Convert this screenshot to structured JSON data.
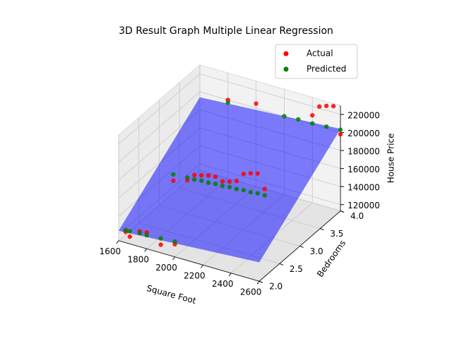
{
  "chart_data": {
    "type": "scatter3d",
    "title": "3D Result Graph Multiple Linear Regression",
    "xlabel": "Square Foot",
    "ylabel": "Bedrooms",
    "zlabel": "House Price",
    "xlim": [
      1600,
      2600
    ],
    "xticks": [
      1600,
      1800,
      2000,
      2200,
      2400,
      2600
    ],
    "ylim": [
      2,
      4
    ],
    "yticks": [
      {
        "value": 2,
        "label": "2.0"
      },
      {
        "value": 2.5,
        "label": "2.5"
      },
      {
        "value": 3,
        "label": "3.0"
      },
      {
        "value": 3.5,
        "label": "3.5"
      },
      {
        "value": 4,
        "label": "4.0"
      }
    ],
    "zlim": [
      113000,
      230000
    ],
    "zticks": [
      120000,
      140000,
      160000,
      180000,
      200000,
      220000
    ],
    "grid": true,
    "legend": "upper right",
    "series": [
      {
        "name": "Actual",
        "color": "red",
        "x": [
          1650,
          1680,
          1750,
          1800,
          1900,
          2000,
          1700,
          1800,
          1850,
          1900,
          1950,
          2000,
          2050,
          2100,
          2150,
          2200,
          2250,
          2300,
          2350,
          1800,
          2000,
          2400,
          2450,
          2500,
          2550,
          2600
        ],
        "y": [
          2,
          2,
          2,
          2,
          2,
          2,
          3,
          3,
          3,
          3,
          3,
          3,
          3,
          3,
          3,
          3,
          3,
          3,
          3,
          4,
          4,
          4,
          4,
          4,
          4,
          4
        ],
        "z": [
          125000,
          121000,
          130000,
          131000,
          122000,
          127000,
          145000,
          150000,
          158000,
          160000,
          162000,
          163000,
          160000,
          162000,
          165000,
          175000,
          178000,
          180000,
          165000,
          200000,
          205000,
          210000,
          222000,
          225000,
          227000,
          198000
        ]
      },
      {
        "name": "Predicted",
        "color": "green",
        "x": [
          1650,
          1680,
          1750,
          1800,
          1900,
          2000,
          1700,
          1800,
          1850,
          1900,
          1950,
          2000,
          2050,
          2100,
          2150,
          2200,
          2250,
          2300,
          2350,
          1800,
          2200,
          2300,
          2400,
          2500,
          2600
        ],
        "y": [
          2,
          2,
          2,
          2,
          2,
          2,
          3,
          3,
          3,
          3,
          3,
          3,
          3,
          3,
          3,
          3,
          3,
          3,
          3,
          4,
          4,
          4,
          4,
          4,
          4
        ],
        "z": [
          127000,
          127000,
          128000,
          128000,
          129000,
          130000,
          152000,
          153000,
          153000,
          154000,
          154000,
          155000,
          155000,
          156000,
          156000,
          157000,
          157000,
          158000,
          158000,
          197000,
          200000,
          201000,
          201000,
          202000,
          203000
        ]
      }
    ],
    "plane": {
      "color": "blue",
      "x": [
        1600,
        2600,
        2600,
        1600
      ],
      "y": [
        2,
        2,
        4,
        4
      ],
      "z": [
        124000,
        134000,
        204000,
        194000
      ]
    }
  }
}
